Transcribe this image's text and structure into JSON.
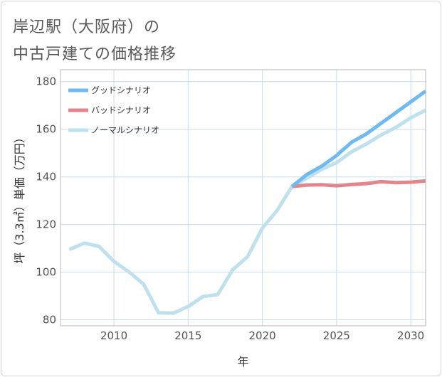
{
  "title": {
    "line1": "岸辺駅（大阪府）の",
    "line2": "中古戸建ての価格推移"
  },
  "colors": {
    "good": "#6fbaf0",
    "bad": "#e0878d",
    "normal": "#bfe1ee",
    "grid": "#c9dce8",
    "plot_border": "#b8b8b8"
  },
  "chart_data": {
    "type": "line",
    "title": "岸辺駅（大阪府）の中古戸建ての価格推移",
    "xlabel": "年",
    "ylabel": "坪（3.3㎡）単価（万円）",
    "xlim": [
      2006.4,
      2031
    ],
    "ylim": [
      77.5,
      185
    ],
    "x_ticks": [
      2010,
      2015,
      2020,
      2025,
      2030
    ],
    "x_tick_labels": [
      "2010",
      "2015",
      "2020",
      "2025",
      "2030"
    ],
    "y_ticks": [
      80,
      100,
      120,
      140,
      160,
      180
    ],
    "y_tick_labels": [
      "80",
      "100",
      "120",
      "140",
      "160",
      "180"
    ],
    "grid": true,
    "legend_position": "top-left",
    "series": [
      {
        "key": "good",
        "name": "グッドシナリオ",
        "x": [
          2022,
          2023,
          2024,
          2025,
          2026,
          2027,
          2028,
          2029,
          2030,
          2031
        ],
        "values": [
          136,
          141,
          144.5,
          149,
          154.5,
          158,
          162.5,
          167,
          171.5,
          176
        ]
      },
      {
        "key": "bad",
        "name": "バッドシナリオ",
        "x": [
          2022,
          2023,
          2024,
          2025,
          2026,
          2027,
          2028,
          2029,
          2030,
          2031
        ],
        "values": [
          136,
          136.6,
          136.7,
          136.3,
          136.8,
          137.2,
          138,
          137.6,
          137.8,
          138.3
        ]
      },
      {
        "key": "normal",
        "name": "ノーマルシナリオ",
        "x": [
          2007,
          2008,
          2009,
          2010,
          2011,
          2012,
          2013,
          2014,
          2015,
          2016,
          2017,
          2018,
          2019,
          2020,
          2021,
          2022,
          2023,
          2024,
          2025,
          2026,
          2027,
          2028,
          2029,
          2030,
          2031
        ],
        "values": [
          109.5,
          112.2,
          110.8,
          104.5,
          100.2,
          95,
          83,
          82.8,
          85.6,
          89.8,
          90.6,
          101,
          106.5,
          118.5,
          126,
          136,
          139.5,
          143.2,
          146,
          150.5,
          153.8,
          157.6,
          160.8,
          164.8,
          168
        ]
      }
    ]
  }
}
